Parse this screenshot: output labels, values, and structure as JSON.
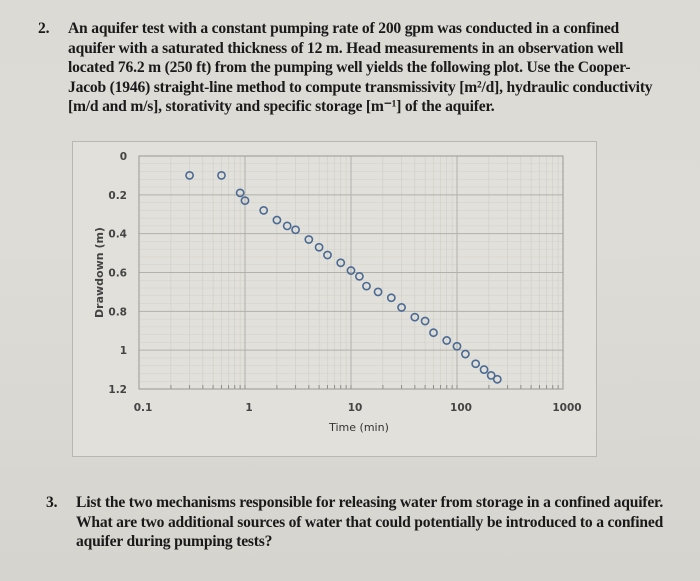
{
  "question2": {
    "number": "2.",
    "text": "An aquifer test with a constant pumping rate of 200 gpm was conducted in a confined aquifer with a saturated thickness of 12 m. Head measurements in an observation well located 76.2 m (250 ft) from the pumping well yields the following plot. Use the Cooper-Jacob (1946) straight-line method to compute transmissivity [m²/d], hydraulic conductivity [m/d and m/s], storativity and specific storage [m⁻¹] of the aquifer."
  },
  "question3": {
    "number": "3.",
    "text": "List the two mechanisms responsible for releasing water from storage in a confined aquifer. What are two additional sources of water that could potentially be introduced to a confined aquifer during pumping tests?"
  },
  "chart_data": {
    "type": "scatter",
    "title": "",
    "xlabel": "Time (min)",
    "ylabel": "Drawdown (m)",
    "xscale": "log",
    "xlim": [
      0.1,
      1000
    ],
    "ylim": [
      0,
      1.2
    ],
    "y_inverted": true,
    "x_ticks": [
      "0.1",
      "1",
      "10",
      "100",
      "1000"
    ],
    "y_ticks": [
      "0",
      "0.2",
      "0.4",
      "0.6",
      "0.8",
      "1",
      "1.2"
    ],
    "grid": true,
    "legend": null,
    "marker": "open-circle",
    "marker_color": "#4a6a94",
    "series": [
      {
        "name": "Drawdown",
        "x": [
          0.3,
          0.6,
          0.9,
          1.0,
          1.5,
          2.0,
          2.5,
          3.0,
          4.0,
          5.0,
          6.0,
          8.0,
          10,
          12,
          14,
          18,
          24,
          30,
          40,
          50,
          60,
          80,
          100,
          120,
          150,
          180,
          210,
          240
        ],
        "y": [
          0.1,
          0.1,
          0.19,
          0.23,
          0.28,
          0.33,
          0.36,
          0.38,
          0.43,
          0.47,
          0.51,
          0.55,
          0.59,
          0.62,
          0.67,
          0.7,
          0.73,
          0.78,
          0.83,
          0.85,
          0.91,
          0.95,
          0.98,
          1.02,
          1.07,
          1.1,
          1.13,
          1.15
        ]
      }
    ]
  }
}
